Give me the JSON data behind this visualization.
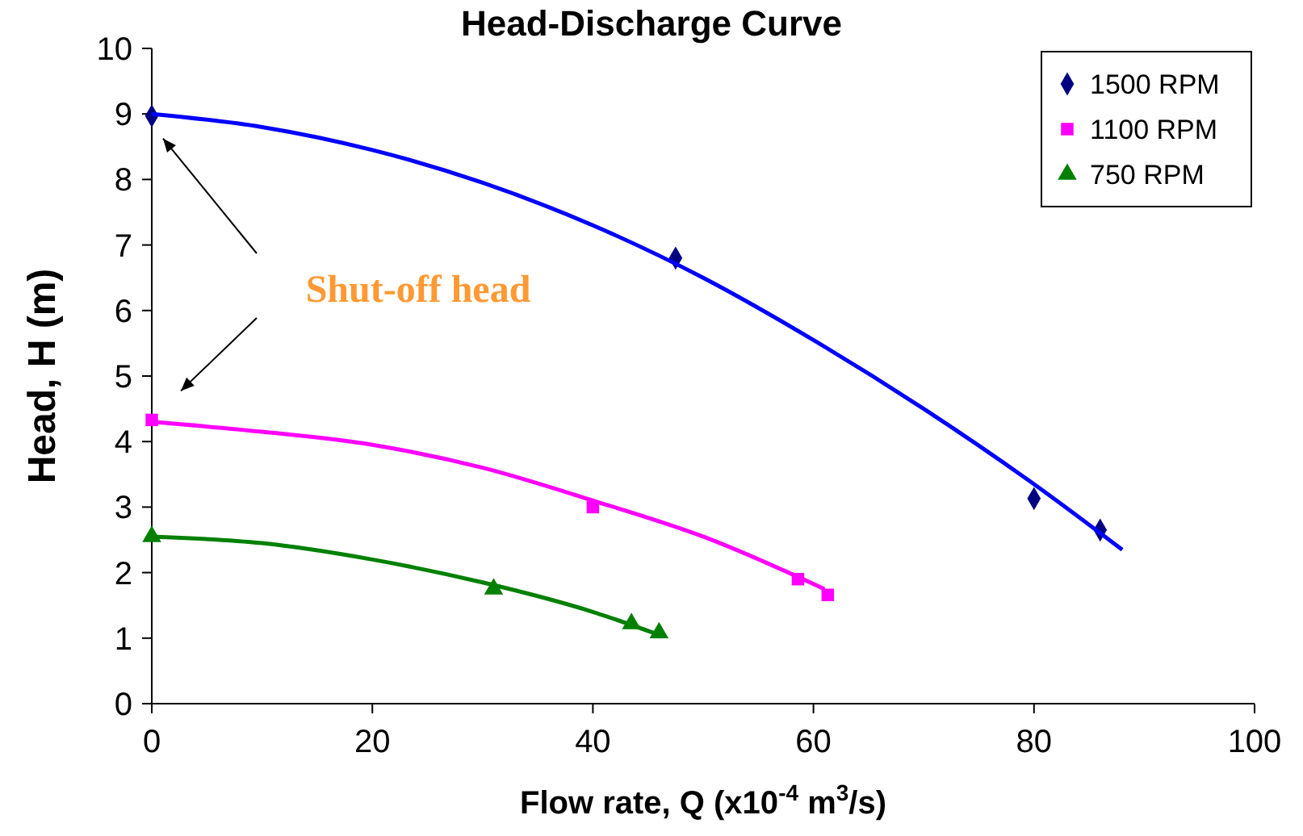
{
  "chart_data": {
    "type": "scatter",
    "title": "Head-Discharge Curve",
    "xlabel": "Flow rate, Q (x10$^{-4}$ m$^{3}$/s)",
    "ylabel": "Head, H (m)",
    "xlim": [
      0,
      100
    ],
    "xticks": [
      0,
      20,
      40,
      60,
      80,
      100
    ],
    "ylim": [
      0,
      10
    ],
    "yticks": [
      0,
      1,
      2,
      3,
      4,
      5,
      6,
      7,
      8,
      9,
      10
    ],
    "grid": false,
    "legend": "top right",
    "annotations": [
      "Shut-off head"
    ],
    "series": [
      {
        "name": "1500 RPM",
        "marker": "diamond",
        "color": "#000080",
        "x": [
          0,
          47.5,
          80,
          86
        ],
        "values": [
          8.97,
          6.8,
          3.13,
          2.65
        ]
      },
      {
        "name": "1100 RPM",
        "marker": "square",
        "color": "#ff00ff",
        "x": [
          0,
          40,
          58.6,
          61.3
        ],
        "values": [
          4.33,
          3.0,
          1.9,
          1.66
        ]
      },
      {
        "name": "750 RPM",
        "marker": "triangle",
        "color": "#008000",
        "x": [
          0,
          31,
          43.5,
          46
        ],
        "values": [
          2.55,
          1.75,
          1.22,
          1.08
        ]
      },
      {
        "type": "line",
        "color": "#0000ff",
        "x": [
          0,
          10,
          20,
          30,
          40,
          50,
          60,
          70,
          80,
          88
        ],
        "values": [
          9.0,
          8.8,
          8.45,
          7.95,
          7.3,
          6.5,
          5.55,
          4.5,
          3.35,
          2.35
        ]
      },
      {
        "type": "line",
        "color": "#ff00ff",
        "x": [
          0,
          10,
          20,
          30,
          40,
          50,
          61
        ],
        "values": [
          4.3,
          4.15,
          3.95,
          3.6,
          3.1,
          2.55,
          1.75
        ]
      },
      {
        "type": "line",
        "color": "#008000",
        "x": [
          0,
          10,
          20,
          30,
          40,
          46
        ],
        "values": [
          2.55,
          2.45,
          2.2,
          1.85,
          1.4,
          1.05
        ]
      }
    ]
  }
}
